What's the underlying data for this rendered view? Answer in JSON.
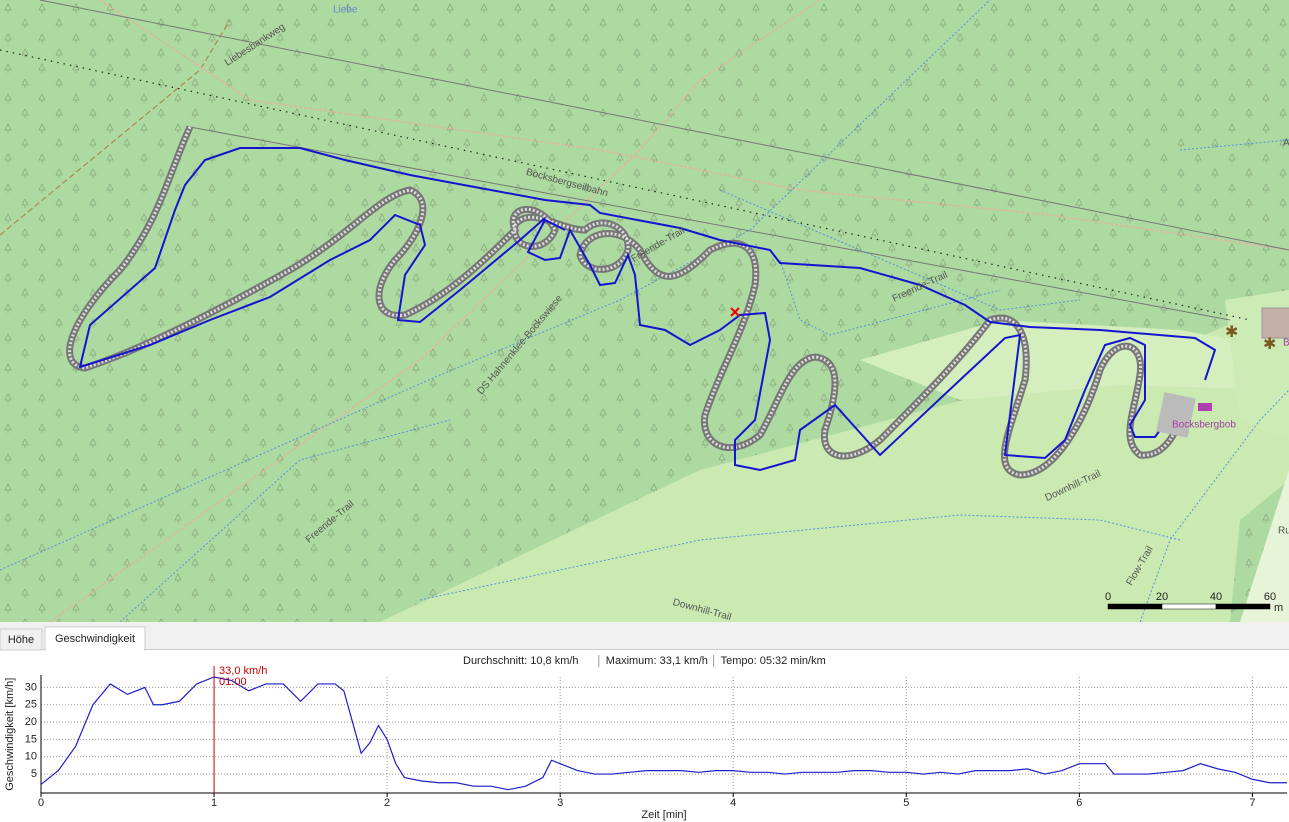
{
  "map": {
    "labels": [
      "Liebe",
      "Liebesbankweg",
      "Bocksbergseilbahn",
      "Freeride-Trail",
      "Freeride-Trail",
      "DS Hahnenklee-Bockswiese",
      "Freeride-Trail",
      "Downhill-Trail",
      "Downhill-Trail",
      "Flow-Trail",
      "Bocksbergbob",
      "Ru",
      "B",
      "A"
    ],
    "scale": {
      "ticks": [
        0,
        20,
        40,
        60
      ],
      "unit": "m"
    }
  },
  "tabs": [
    "Höhe",
    "Geschwindigkeit"
  ],
  "stats": [
    "Durchschnitt: 10,8 km/h",
    "Maximum: 33,1 km/h",
    "Tempo: 05:32 min/km"
  ],
  "chart_data": {
    "type": "line",
    "x_label": "Zeit [min]",
    "y_label": "Geschwindigkeit [km/h]",
    "xlim": [
      0,
      7.2
    ],
    "ylim": [
      0,
      33
    ],
    "xticks": [
      0,
      1,
      2,
      3,
      4,
      5,
      6,
      7
    ],
    "yticks": [
      5,
      10,
      15,
      20,
      25,
      30
    ],
    "grid": true,
    "cursor": {
      "x": 1,
      "value": 33.0,
      "value_label": "33,0 km/h",
      "time_label": "01:00",
      "color": "#cc0000"
    },
    "series": [
      {
        "name": "Geschwindigkeit",
        "color": "#1f1fc8",
        "x": [
          0,
          0.1,
          0.2,
          0.3,
          0.4,
          0.5,
          0.6,
          0.65,
          0.7,
          0.8,
          0.9,
          1.0,
          1.1,
          1.2,
          1.3,
          1.4,
          1.5,
          1.6,
          1.7,
          1.75,
          1.8,
          1.85,
          1.9,
          1.95,
          2.0,
          2.05,
          2.1,
          2.2,
          2.3,
          2.4,
          2.5,
          2.6,
          2.7,
          2.8,
          2.9,
          2.95,
          3.0,
          3.1,
          3.2,
          3.3,
          3.4,
          3.5,
          3.6,
          3.7,
          3.8,
          3.9,
          4.0,
          4.1,
          4.2,
          4.3,
          4.4,
          4.5,
          4.6,
          4.7,
          4.8,
          4.9,
          5.0,
          5.1,
          5.2,
          5.3,
          5.4,
          5.5,
          5.6,
          5.7,
          5.8,
          5.9,
          6.0,
          6.1,
          6.15,
          6.2,
          6.3,
          6.4,
          6.5,
          6.6,
          6.7,
          6.8,
          6.9,
          7.0,
          7.1,
          7.2
        ],
        "values": [
          2,
          6,
          13,
          25,
          31,
          28,
          30,
          25,
          25,
          26,
          31,
          33,
          32,
          29,
          31,
          31,
          26,
          31,
          31,
          29,
          20,
          11,
          14,
          19,
          15,
          8,
          4,
          3,
          2.5,
          2.5,
          1.5,
          1.5,
          0.5,
          1.5,
          4,
          9,
          8,
          6,
          5,
          5,
          5.5,
          6,
          6,
          6,
          5.5,
          6,
          6,
          5.5,
          5.5,
          5,
          5.5,
          5.5,
          5.5,
          6,
          6,
          5.5,
          5.5,
          5,
          5.5,
          5,
          6,
          6,
          6,
          6.5,
          5,
          6,
          8,
          8,
          8,
          5,
          5,
          5,
          5.5,
          6,
          8,
          6.5,
          5.5,
          3.5,
          2.5,
          2.5
        ]
      }
    ]
  }
}
